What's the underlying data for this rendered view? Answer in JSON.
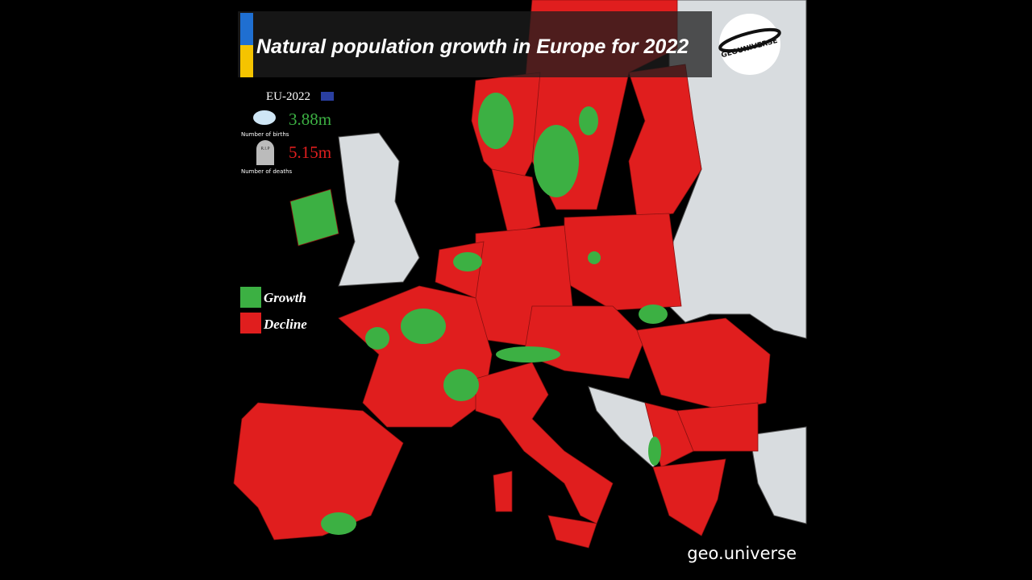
{
  "header": {
    "title": "Natural population growth in Europe for 2022",
    "logo": "GEOUNIVERSE"
  },
  "stats": {
    "label": "EU-2022",
    "births": {
      "value": "3.88m",
      "caption": "Number of births"
    },
    "deaths": {
      "value": "5.15m",
      "caption": "Number of deaths",
      "icon_text": "R.I.P"
    }
  },
  "legend": [
    {
      "label": "Growth",
      "color": "#3cb043"
    },
    {
      "label": "Decline",
      "color": "#e01e1e"
    }
  ],
  "watermark": "geo.universe"
}
